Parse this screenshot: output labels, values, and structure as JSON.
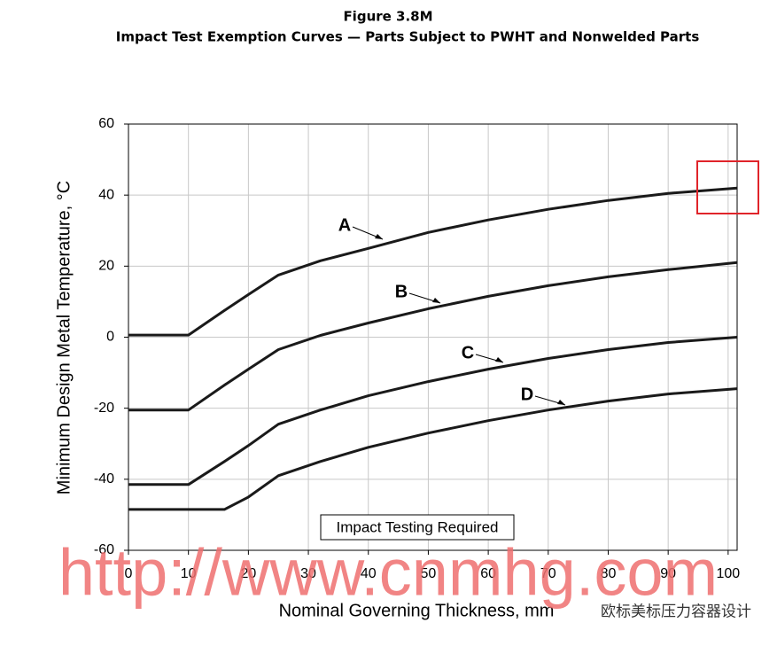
{
  "chart_data": {
    "type": "line",
    "title": "Figure 3.8M",
    "subtitle": "Impact Test Exemption Curves — Parts Subject to PWHT and Nonwelded Parts",
    "x_label": "Nominal Governing Thickness, mm",
    "y_label": "Minimum Design Metal Temperature, °C",
    "annotation": "Impact Testing Required",
    "watermark": "http://www.cnmhg.com",
    "watermark_badge": "欧标美标压力容器设计",
    "x": [
      0,
      10,
      16,
      20,
      25,
      32,
      40,
      50,
      60,
      70,
      80,
      90,
      101.5
    ],
    "series": [
      {
        "name": "A",
        "color": "#1a1a1a",
        "values": [
          0.6,
          0.6,
          7.5,
          12,
          17.5,
          21.5,
          25,
          29.5,
          33,
          36,
          38.5,
          40.5,
          42
        ]
      },
      {
        "name": "B",
        "color": "#1a1a1a",
        "values": [
          -20.5,
          -20.5,
          -13.5,
          -9,
          -3.5,
          0.5,
          4,
          8,
          11.5,
          14.5,
          17,
          19,
          21
        ]
      },
      {
        "name": "C",
        "color": "#1a1a1a",
        "values": [
          -41.5,
          -41.5,
          -35,
          -30.5,
          -24.5,
          -20.5,
          -16.5,
          -12.5,
          -9,
          -6,
          -3.5,
          -1.5,
          0
        ]
      },
      {
        "name": "D",
        "color": "#1a1a1a",
        "values": [
          -48.5,
          -48.5,
          -48.5,
          -45,
          -39,
          -35,
          -31,
          -27,
          -23.5,
          -20.5,
          -18,
          -16,
          -14.5
        ]
      }
    ],
    "xlim": [
      0,
      101.5
    ],
    "ylim": [
      -60,
      60
    ],
    "xticks": [
      0,
      10,
      20,
      30,
      40,
      50,
      60,
      70,
      80,
      90,
      100
    ],
    "yticks": [
      -60,
      -40,
      -20,
      0,
      20,
      40,
      60
    ],
    "grid": true
  }
}
